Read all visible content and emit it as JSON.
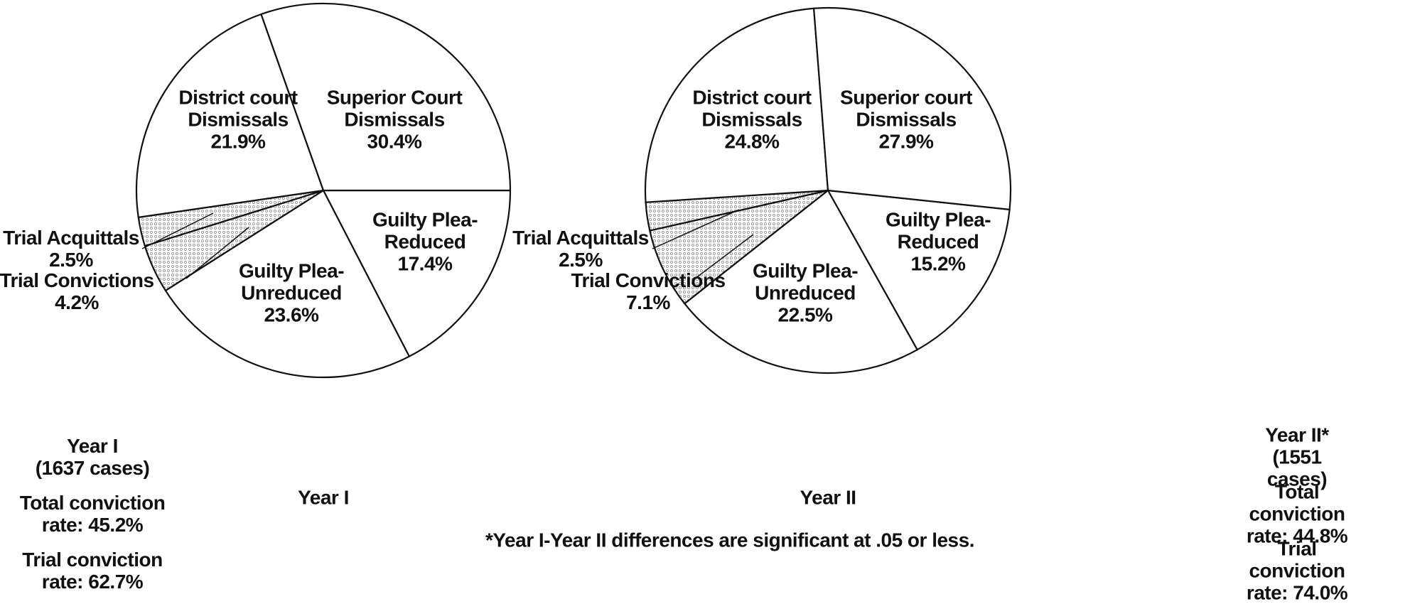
{
  "chart_data": [
    {
      "type": "pie",
      "title": "Year I",
      "categories": [
        "Guilty Plea-\nReduced",
        "Guilty Plea-\nUnreduced",
        "Trial Convictions",
        "Trial Acquittals",
        "District court\nDismissals",
        "Superior Court\nDismissals"
      ],
      "values": [
        17.4,
        23.6,
        4.2,
        2.5,
        21.9,
        30.4
      ],
      "value_labels": [
        "17.4%",
        "23.6%",
        "4.2%",
        "2.5%",
        "21.9%",
        "30.4%"
      ],
      "colors": [
        "#ffffff",
        "#ffffff",
        "#9a9a9a",
        "#9a9a9a",
        "#ffffff",
        "#ffffff"
      ],
      "summary": [
        "Year I\n(1637 cases)",
        "Total conviction\nrate: 45.2%",
        "Trial conviction\nrate: 62.7%"
      ]
    },
    {
      "type": "pie",
      "title": "Year II",
      "categories": [
        "Guilty Plea-\nReduced",
        "Guilty Plea-\nUnreduced",
        "Trial Convictions",
        "Trial Acquittals",
        "District court\nDismissals",
        "Superior court\nDismissals"
      ],
      "values": [
        15.2,
        22.5,
        7.1,
        2.5,
        24.8,
        27.9
      ],
      "value_labels": [
        "15.2%",
        "22.5%",
        "7.1%",
        "2.5%",
        "24.8%",
        "27.9%"
      ],
      "colors": [
        "#ffffff",
        "#ffffff",
        "#9a9a9a",
        "#9a9a9a",
        "#ffffff",
        "#ffffff"
      ],
      "summary": [
        "Year II*\n(1551 cases)",
        "Total conviction\nrate: 44.8%",
        "Trial conviction\nrate: 74.0%"
      ]
    }
  ],
  "footnote": "*Year I-Year II differences are significant at .05 or less."
}
